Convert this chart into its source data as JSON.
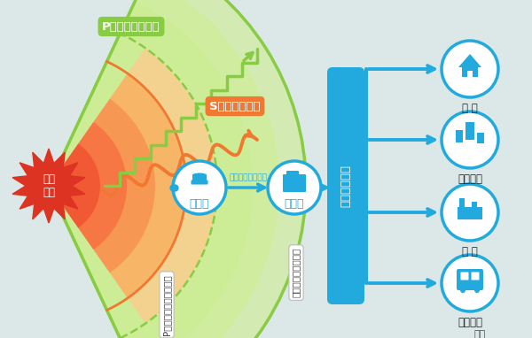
{
  "bg_color": "#dce8e8",
  "p_wave_label": "P波（初期微動）",
  "s_wave_label": "S波（主要動）",
  "earthquake_label": "地震\n発生",
  "seismometer_label": "地震計",
  "data_transfer_label": "瞬時のデータ転送",
  "jma_label": "気象庁",
  "alert_label": "緊急地震速報を発表",
  "ews_label": "緊急地震速報",
  "p_wave_observe": "P波（初期微動）を観測",
  "destinations": [
    "家 庭",
    "集客施設",
    "工 場",
    "交通機関"
  ],
  "nado_label": "など",
  "p_wave_color": "#88cc44",
  "s_wave_color": "#f07830",
  "blue_color": "#22aade",
  "earthquake_color": "#dd3322",
  "orange_fill": "#f8c080"
}
